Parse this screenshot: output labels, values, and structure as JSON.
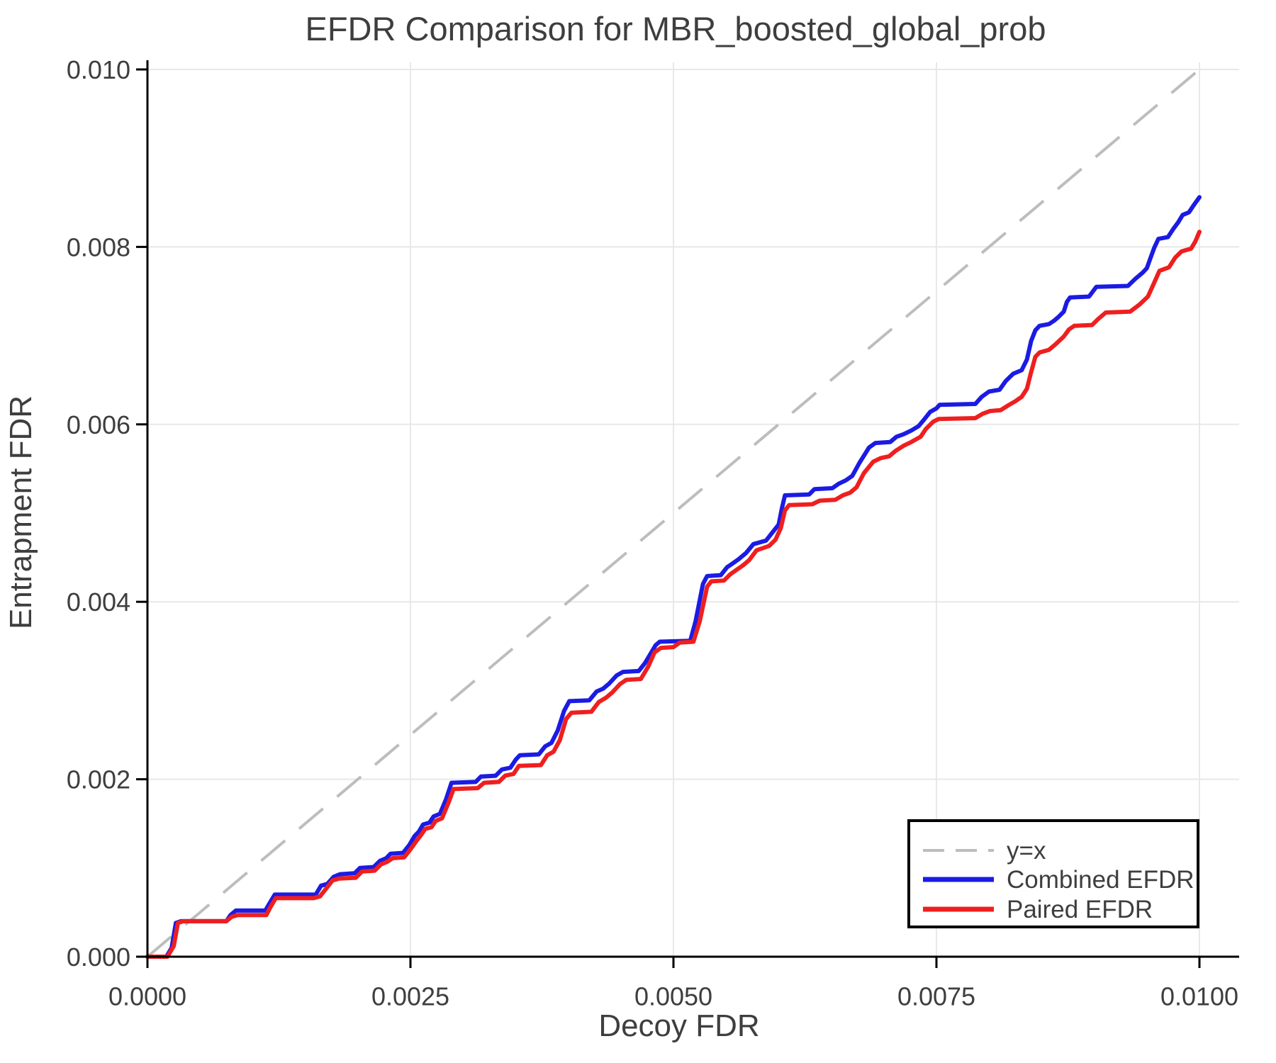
{
  "chart_data": {
    "type": "line",
    "title": "EFDR Comparison for MBR_boosted_global_prob",
    "xlabel": "Decoy FDR",
    "ylabel": "Entrapment FDR",
    "xlim": [
      0.0,
      0.01
    ],
    "ylim": [
      0.0,
      0.01
    ],
    "xticks": [
      0.0,
      0.0025,
      0.005,
      0.0075,
      0.01
    ],
    "xtick_labels": [
      "0.0000",
      "0.0025",
      "0.0050",
      "0.0075",
      "0.0100"
    ],
    "yticks": [
      0.0,
      0.002,
      0.004,
      0.006,
      0.008,
      0.01
    ],
    "ytick_labels": [
      "0.000",
      "0.002",
      "0.004",
      "0.006",
      "0.008",
      "0.010"
    ],
    "grid": true,
    "legend_position": "lower right",
    "colors": {
      "grid": "#e8e8e8",
      "axis": "#000000",
      "text": "#3e3e3e",
      "background": "#ffffff"
    },
    "series": [
      {
        "name": "y=x",
        "style": "dashed",
        "color": "#bdbdbd",
        "points": [
          [
            0.0,
            0.0
          ],
          [
            0.01,
            0.01
          ]
        ]
      },
      {
        "name": "Combined EFDR",
        "style": "solid",
        "color": "#1b1be4",
        "points": [
          [
            0.0,
            0.0
          ],
          [
            0.00018,
            0.0
          ],
          [
            0.00023,
            0.0001
          ],
          [
            0.00027,
            0.00038
          ],
          [
            0.00032,
            0.0004
          ],
          [
            0.00075,
            0.0004
          ],
          [
            0.00079,
            0.00047
          ],
          [
            0.00084,
            0.00052
          ],
          [
            0.00112,
            0.00052
          ],
          [
            0.00116,
            0.0006
          ],
          [
            0.00121,
            0.0007
          ],
          [
            0.0016,
            0.0007
          ],
          [
            0.00165,
            0.0008
          ],
          [
            0.00171,
            0.00082
          ],
          [
            0.00177,
            0.0009
          ],
          [
            0.00183,
            0.00093
          ],
          [
            0.00197,
            0.00094
          ],
          [
            0.00202,
            0.001
          ],
          [
            0.00215,
            0.00101
          ],
          [
            0.00221,
            0.00108
          ],
          [
            0.00227,
            0.00111
          ],
          [
            0.00231,
            0.00116
          ],
          [
            0.00243,
            0.00117
          ],
          [
            0.00249,
            0.00126
          ],
          [
            0.00254,
            0.00136
          ],
          [
            0.00258,
            0.00141
          ],
          [
            0.00262,
            0.00149
          ],
          [
            0.00268,
            0.00151
          ],
          [
            0.00272,
            0.00158
          ],
          [
            0.00278,
            0.00161
          ],
          [
            0.00284,
            0.00178
          ],
          [
            0.00289,
            0.00196
          ],
          [
            0.00312,
            0.00197
          ],
          [
            0.00317,
            0.00203
          ],
          [
            0.00331,
            0.00204
          ],
          [
            0.00337,
            0.00211
          ],
          [
            0.00345,
            0.00213
          ],
          [
            0.0035,
            0.00222
          ],
          [
            0.00354,
            0.00227
          ],
          [
            0.00372,
            0.00228
          ],
          [
            0.00378,
            0.00237
          ],
          [
            0.00384,
            0.00241
          ],
          [
            0.0039,
            0.00255
          ],
          [
            0.00396,
            0.00277
          ],
          [
            0.00401,
            0.00288
          ],
          [
            0.0042,
            0.00289
          ],
          [
            0.00427,
            0.00299
          ],
          [
            0.00433,
            0.00302
          ],
          [
            0.00439,
            0.00308
          ],
          [
            0.00446,
            0.00317
          ],
          [
            0.00452,
            0.00321
          ],
          [
            0.00467,
            0.00322
          ],
          [
            0.00473,
            0.00331
          ],
          [
            0.00478,
            0.00341
          ],
          [
            0.00483,
            0.00351
          ],
          [
            0.00487,
            0.00355
          ],
          [
            0.00516,
            0.00356
          ],
          [
            0.00521,
            0.00378
          ],
          [
            0.00528,
            0.0042
          ],
          [
            0.00532,
            0.00429
          ],
          [
            0.00545,
            0.0043
          ],
          [
            0.00551,
            0.00439
          ],
          [
            0.00556,
            0.00443
          ],
          [
            0.00562,
            0.00448
          ],
          [
            0.00569,
            0.00455
          ],
          [
            0.00576,
            0.00465
          ],
          [
            0.00588,
            0.00469
          ],
          [
            0.00594,
            0.00478
          ],
          [
            0.006,
            0.00487
          ],
          [
            0.00603,
            0.00505
          ],
          [
            0.00606,
            0.0052
          ],
          [
            0.00629,
            0.00521
          ],
          [
            0.00634,
            0.00527
          ],
          [
            0.00651,
            0.00528
          ],
          [
            0.00657,
            0.00533
          ],
          [
            0.00664,
            0.00537
          ],
          [
            0.0067,
            0.00542
          ],
          [
            0.00677,
            0.00557
          ],
          [
            0.00686,
            0.00574
          ],
          [
            0.00692,
            0.00579
          ],
          [
            0.00706,
            0.0058
          ],
          [
            0.00712,
            0.00586
          ],
          [
            0.00719,
            0.00589
          ],
          [
            0.00726,
            0.00593
          ],
          [
            0.00733,
            0.00598
          ],
          [
            0.00738,
            0.00605
          ],
          [
            0.00744,
            0.00614
          ],
          [
            0.0075,
            0.00618
          ],
          [
            0.00753,
            0.00622
          ],
          [
            0.00787,
            0.00623
          ],
          [
            0.00793,
            0.00631
          ],
          [
            0.008,
            0.00637
          ],
          [
            0.0081,
            0.00639
          ],
          [
            0.00816,
            0.00649
          ],
          [
            0.00823,
            0.00657
          ],
          [
            0.00831,
            0.00661
          ],
          [
            0.00836,
            0.00673
          ],
          [
            0.0084,
            0.00694
          ],
          [
            0.00844,
            0.00706
          ],
          [
            0.00848,
            0.00711
          ],
          [
            0.00857,
            0.00713
          ],
          [
            0.00862,
            0.00717
          ],
          [
            0.00866,
            0.00721
          ],
          [
            0.00871,
            0.00727
          ],
          [
            0.00874,
            0.00738
          ],
          [
            0.00877,
            0.00743
          ],
          [
            0.00895,
            0.00744
          ],
          [
            0.00902,
            0.00755
          ],
          [
            0.00932,
            0.00756
          ],
          [
            0.00939,
            0.00764
          ],
          [
            0.00946,
            0.00771
          ],
          [
            0.0095,
            0.00776
          ],
          [
            0.00953,
            0.00786
          ],
          [
            0.00957,
            0.00799
          ],
          [
            0.00961,
            0.00809
          ],
          [
            0.0097,
            0.00811
          ],
          [
            0.00975,
            0.0082
          ],
          [
            0.0098,
            0.00828
          ],
          [
            0.00984,
            0.00836
          ],
          [
            0.0099,
            0.00839
          ],
          [
            0.00994,
            0.00846
          ],
          [
            0.01,
            0.00856
          ]
        ]
      },
      {
        "name": "Paired EFDR",
        "style": "solid",
        "color": "#ef1f1f",
        "points": [
          [
            0.0,
            0.0
          ],
          [
            0.00019,
            0.0
          ],
          [
            0.00025,
            0.00012
          ],
          [
            0.00029,
            0.00038
          ],
          [
            0.00034,
            0.0004
          ],
          [
            0.00075,
            0.0004
          ],
          [
            0.0008,
            0.00045
          ],
          [
            0.00086,
            0.00047
          ],
          [
            0.00113,
            0.00047
          ],
          [
            0.00117,
            0.00056
          ],
          [
            0.00122,
            0.00066
          ],
          [
            0.00158,
            0.00066
          ],
          [
            0.00164,
            0.00068
          ],
          [
            0.0017,
            0.00077
          ],
          [
            0.00176,
            0.00086
          ],
          [
            0.00182,
            0.00088
          ],
          [
            0.00198,
            0.00089
          ],
          [
            0.00204,
            0.00096
          ],
          [
            0.00216,
            0.00097
          ],
          [
            0.00222,
            0.00104
          ],
          [
            0.00228,
            0.00107
          ],
          [
            0.00233,
            0.00111
          ],
          [
            0.00244,
            0.00112
          ],
          [
            0.0025,
            0.00121
          ],
          [
            0.00256,
            0.00131
          ],
          [
            0.0026,
            0.00137
          ],
          [
            0.00264,
            0.00144
          ],
          [
            0.0027,
            0.00146
          ],
          [
            0.00274,
            0.00153
          ],
          [
            0.0028,
            0.00156
          ],
          [
            0.00286,
            0.00173
          ],
          [
            0.00291,
            0.00189
          ],
          [
            0.00314,
            0.0019
          ],
          [
            0.0032,
            0.00196
          ],
          [
            0.00334,
            0.00197
          ],
          [
            0.0034,
            0.00204
          ],
          [
            0.00348,
            0.00206
          ],
          [
            0.00353,
            0.00215
          ],
          [
            0.00374,
            0.00216
          ],
          [
            0.0038,
            0.00227
          ],
          [
            0.00386,
            0.00231
          ],
          [
            0.00392,
            0.00244
          ],
          [
            0.00398,
            0.00268
          ],
          [
            0.00403,
            0.00275
          ],
          [
            0.00422,
            0.00276
          ],
          [
            0.00429,
            0.00287
          ],
          [
            0.00436,
            0.00292
          ],
          [
            0.00442,
            0.00298
          ],
          [
            0.00449,
            0.00307
          ],
          [
            0.00455,
            0.00312
          ],
          [
            0.00469,
            0.00313
          ],
          [
            0.00476,
            0.00327
          ],
          [
            0.00482,
            0.00343
          ],
          [
            0.00488,
            0.00348
          ],
          [
            0.005,
            0.00349
          ],
          [
            0.00506,
            0.00354
          ],
          [
            0.00519,
            0.00355
          ],
          [
            0.00525,
            0.00378
          ],
          [
            0.00532,
            0.00417
          ],
          [
            0.00536,
            0.00423
          ],
          [
            0.00548,
            0.00424
          ],
          [
            0.00554,
            0.00431
          ],
          [
            0.0056,
            0.00436
          ],
          [
            0.00566,
            0.00441
          ],
          [
            0.00572,
            0.00447
          ],
          [
            0.00579,
            0.00458
          ],
          [
            0.00591,
            0.00463
          ],
          [
            0.00597,
            0.0047
          ],
          [
            0.00602,
            0.00483
          ],
          [
            0.00606,
            0.00503
          ],
          [
            0.0061,
            0.00509
          ],
          [
            0.00632,
            0.0051
          ],
          [
            0.00639,
            0.00514
          ],
          [
            0.00654,
            0.00515
          ],
          [
            0.00661,
            0.0052
          ],
          [
            0.00668,
            0.00523
          ],
          [
            0.00674,
            0.00529
          ],
          [
            0.00681,
            0.00545
          ],
          [
            0.0069,
            0.00558
          ],
          [
            0.00697,
            0.00562
          ],
          [
            0.00705,
            0.00564
          ],
          [
            0.00711,
            0.0057
          ],
          [
            0.00719,
            0.00576
          ],
          [
            0.00726,
            0.0058
          ],
          [
            0.00735,
            0.00586
          ],
          [
            0.0074,
            0.00595
          ],
          [
            0.00747,
            0.00603
          ],
          [
            0.00752,
            0.00606
          ],
          [
            0.00787,
            0.00607
          ],
          [
            0.00794,
            0.00612
          ],
          [
            0.00801,
            0.00615
          ],
          [
            0.00811,
            0.00616
          ],
          [
            0.00819,
            0.00622
          ],
          [
            0.00825,
            0.00626
          ],
          [
            0.00831,
            0.00631
          ],
          [
            0.00836,
            0.0064
          ],
          [
            0.0084,
            0.00659
          ],
          [
            0.00844,
            0.00676
          ],
          [
            0.00848,
            0.00681
          ],
          [
            0.00857,
            0.00684
          ],
          [
            0.00863,
            0.0069
          ],
          [
            0.00871,
            0.00699
          ],
          [
            0.00876,
            0.00707
          ],
          [
            0.00881,
            0.00711
          ],
          [
            0.00898,
            0.00712
          ],
          [
            0.00904,
            0.00719
          ],
          [
            0.00911,
            0.00726
          ],
          [
            0.00934,
            0.00727
          ],
          [
            0.00943,
            0.00735
          ],
          [
            0.00951,
            0.00744
          ],
          [
            0.00956,
            0.00757
          ],
          [
            0.00962,
            0.00773
          ],
          [
            0.00971,
            0.00777
          ],
          [
            0.00977,
            0.00788
          ],
          [
            0.00983,
            0.00795
          ],
          [
            0.00992,
            0.00798
          ],
          [
            0.00996,
            0.00806
          ],
          [
            0.01,
            0.00817
          ]
        ]
      }
    ]
  }
}
